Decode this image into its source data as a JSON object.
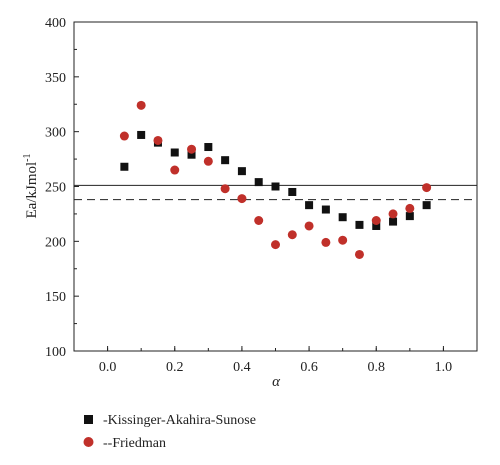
{
  "chart_data": {
    "type": "scatter",
    "xlabel": "α",
    "ylabel": "Ea/kJmol",
    "ylabel_superscript": "-1",
    "xlim": [
      -0.1,
      1.1
    ],
    "ylim": [
      100,
      400
    ],
    "xticks": [
      0.0,
      0.2,
      0.4,
      0.6,
      0.8,
      1.0
    ],
    "xtick_labels": [
      "0.0",
      "0.2",
      "0.4",
      "0.6",
      "0.8",
      "1.0"
    ],
    "yticks": [
      100,
      150,
      200,
      250,
      300,
      350,
      400
    ],
    "ytick_labels": [
      "100",
      "150",
      "200",
      "250",
      "300",
      "350",
      "400"
    ],
    "grid": false,
    "legend_position": "bottom-left, below plot",
    "series": [
      {
        "name": "-Kissinger-Akahira-Sunose",
        "marker": "square",
        "color": "#111111",
        "x": [
          0.05,
          0.1,
          0.15,
          0.2,
          0.25,
          0.3,
          0.35,
          0.4,
          0.45,
          0.5,
          0.55,
          0.6,
          0.65,
          0.7,
          0.75,
          0.8,
          0.85,
          0.9,
          0.95
        ],
        "y": [
          268,
          297,
          290,
          281,
          279,
          286,
          274,
          264,
          254,
          250,
          245,
          233,
          229,
          222,
          215,
          214,
          218,
          223,
          233
        ]
      },
      {
        "name": "--Friedman",
        "marker": "circle",
        "color": "#c0302a",
        "x": [
          0.05,
          0.1,
          0.15,
          0.2,
          0.25,
          0.3,
          0.35,
          0.4,
          0.45,
          0.5,
          0.55,
          0.6,
          0.65,
          0.7,
          0.75,
          0.8,
          0.85,
          0.9,
          0.95
        ],
        "y": [
          296,
          324,
          292,
          265,
          284,
          273,
          248,
          239,
          219,
          197,
          206,
          214,
          199,
          201,
          188,
          219,
          225,
          230,
          249
        ]
      }
    ],
    "reference_lines": [
      {
        "style": "solid",
        "y": 251
      },
      {
        "style": "dashed",
        "y": 238
      }
    ]
  }
}
